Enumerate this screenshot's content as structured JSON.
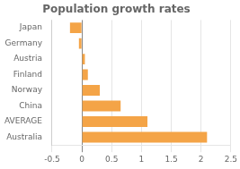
{
  "chart_data": {
    "type": "bar",
    "orientation": "horizontal",
    "title": "Population growth rates",
    "categories": [
      "Australia",
      "AVERAGE",
      "China",
      "Norway",
      "Finland",
      "Austria",
      "Germany",
      "Japan"
    ],
    "values": [
      2.1,
      1.1,
      0.65,
      0.3,
      0.1,
      0.05,
      -0.05,
      -0.2
    ],
    "color": "#F4A447",
    "xlim": [
      -0.5,
      2.5
    ],
    "xticks": [
      -0.5,
      0,
      0.5,
      1.0,
      1.5,
      2.0,
      2.5
    ],
    "grid": true
  }
}
